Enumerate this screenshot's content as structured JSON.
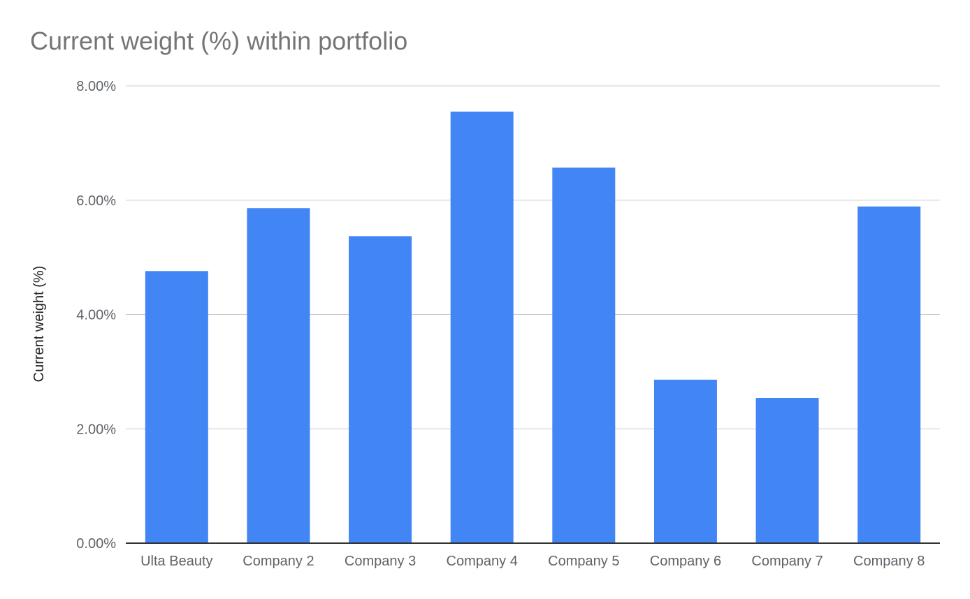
{
  "chart_data": {
    "type": "bar",
    "title": "Current weight (%) within portfolio",
    "xlabel": "",
    "ylabel": "Current weight (%)",
    "categories": [
      "Ulta Beauty",
      "Company 2",
      "Company 3",
      "Company 4",
      "Company 5",
      "Company 6",
      "Company 7",
      "Company 8"
    ],
    "values": [
      4.76,
      5.86,
      5.37,
      7.55,
      6.57,
      2.86,
      2.54,
      5.89
    ],
    "ylim": [
      0,
      8
    ],
    "yticks": [
      "0.00%",
      "2.00%",
      "4.00%",
      "6.00%",
      "8.00%"
    ],
    "grid": true,
    "legend": "none",
    "bar_color": "#4285f4",
    "gridline_color": "#cccccc",
    "baseline_color": "#333333"
  }
}
